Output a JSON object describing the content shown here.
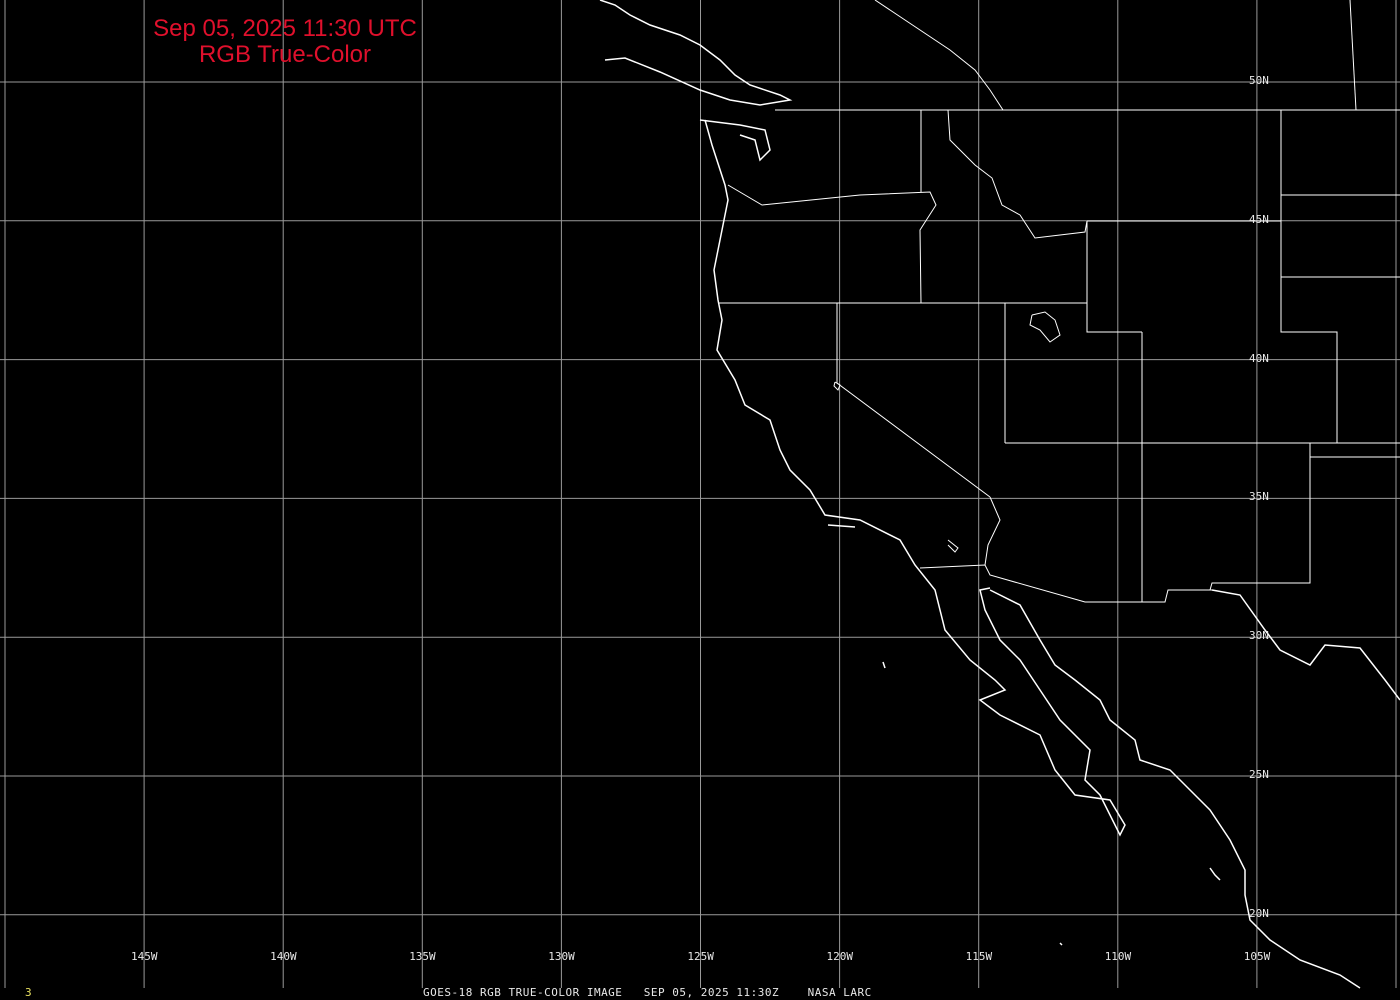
{
  "title": {
    "line1": "Sep 05, 2025 11:30 UTC",
    "line2": "RGB True-Color"
  },
  "colors": {
    "title": "#e0102c",
    "grid": "#9a9a9a",
    "coastline": "#ffffff",
    "background": "#000000",
    "frame_number": "#e8e060"
  },
  "longitude_labels": [
    "145W",
    "140W",
    "135W",
    "130W",
    "125W",
    "120W",
    "115W",
    "110W",
    "105W"
  ],
  "latitude_labels": [
    "50N",
    "45N",
    "40N",
    "35N",
    "30N",
    "25N",
    "20N"
  ],
  "footer": {
    "frame_number": "3",
    "caption": "GOES-18 RGB TRUE-COLOR IMAGE   SEP 05, 2025 11:30Z    NASA LARC"
  }
}
